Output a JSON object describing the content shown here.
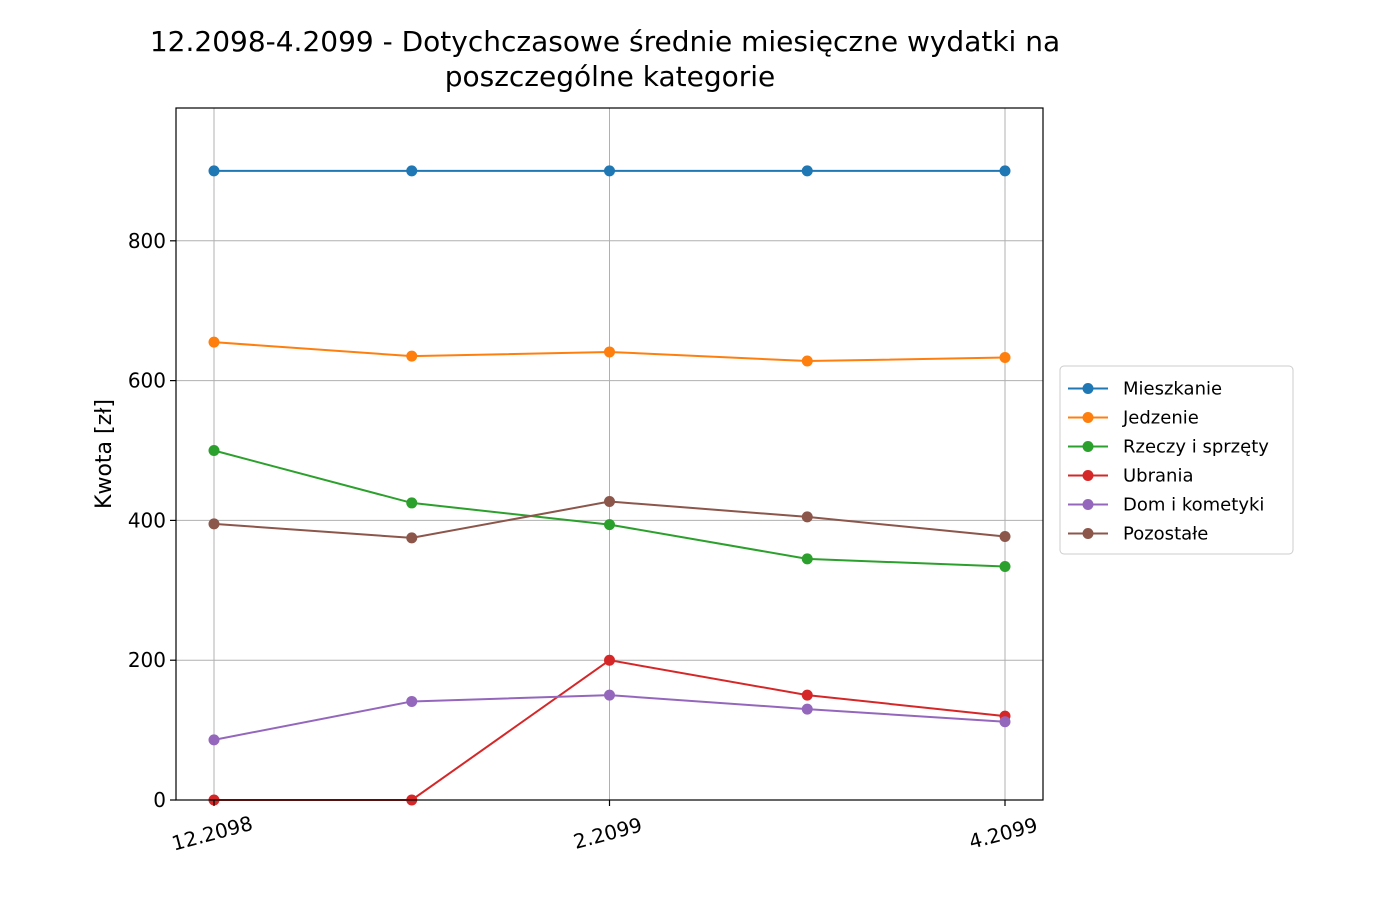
{
  "chart_data": {
    "type": "line",
    "title_lines": [
      "12.2098-4.2099 - Dotychczasowe średnie miesięczne wydatki na",
      "poszczególne kategorie"
    ],
    "xlabel": "",
    "ylabel": "Kwota [zł]",
    "x_points": 5,
    "x_tick_labels": [
      {
        "index": 0,
        "label": "12.2098"
      },
      {
        "index": 2,
        "label": "2.2099"
      },
      {
        "index": 4,
        "label": "4.2099"
      }
    ],
    "ylim": [
      0,
      990
    ],
    "y_ticks": [
      0,
      200,
      400,
      600,
      800
    ],
    "grid": true,
    "legend_position": "right, outside plot, vertically centered",
    "series": [
      {
        "name": "Mieszkanie",
        "color": "#1f77b4",
        "values": [
          900,
          900,
          900,
          900,
          900
        ]
      },
      {
        "name": "Jedzenie",
        "color": "#ff7f0e",
        "values": [
          655,
          635,
          641,
          628,
          633
        ]
      },
      {
        "name": "Rzeczy i sprzęty",
        "color": "#2ca02c",
        "values": [
          500,
          425,
          394,
          345,
          334
        ]
      },
      {
        "name": "Ubrania",
        "color": "#d62728",
        "values": [
          0,
          0,
          200,
          150,
          120
        ]
      },
      {
        "name": "Dom i kometyki",
        "color": "#9467bd",
        "values": [
          86,
          141,
          150,
          130,
          112
        ]
      },
      {
        "name": "Pozostałe",
        "color": "#8c564b",
        "values": [
          395,
          375,
          427,
          405,
          377
        ]
      }
    ]
  }
}
